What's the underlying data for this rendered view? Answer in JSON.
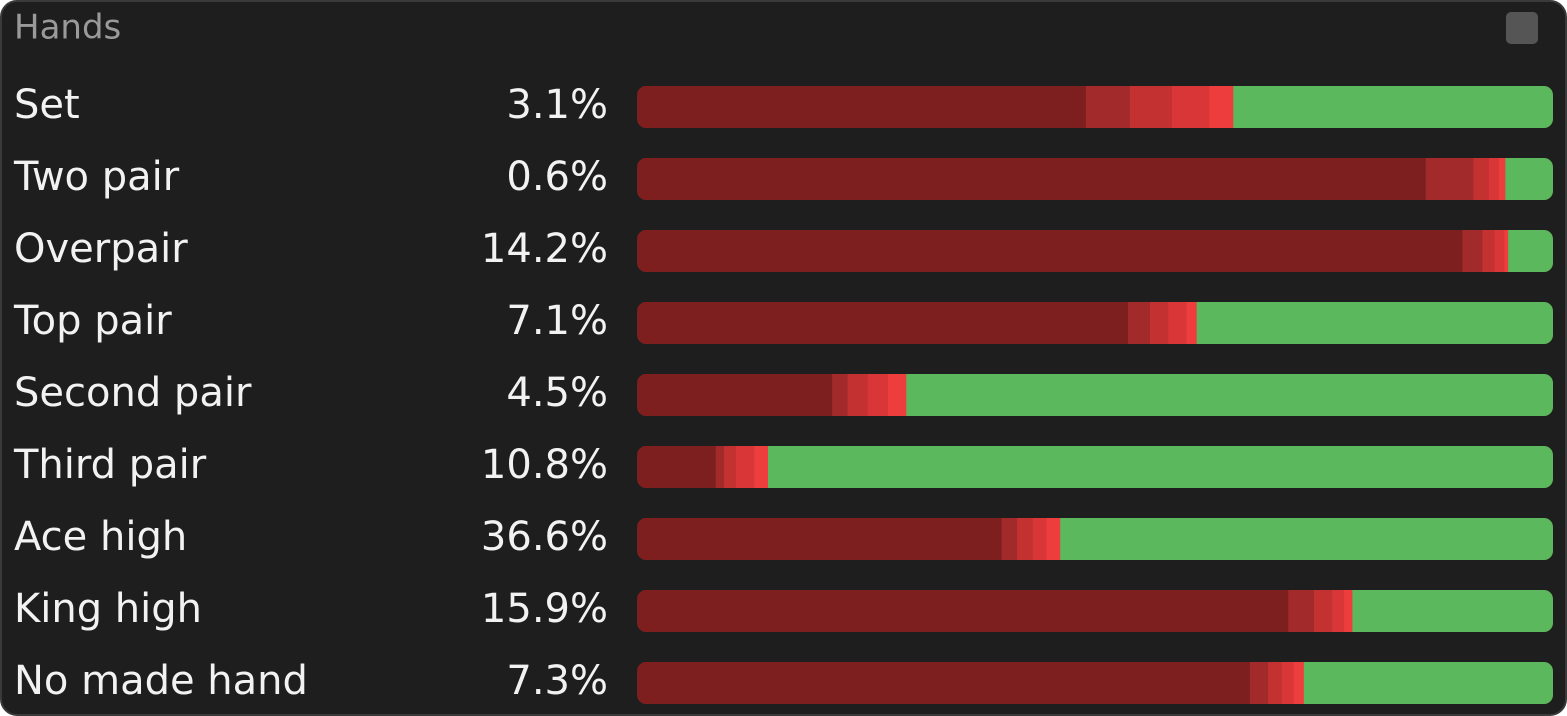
{
  "panel": {
    "title": "Hands",
    "segment_colors": [
      "#7d1f1f",
      "#a22a2a",
      "#c43131",
      "#d93737",
      "#ee3d3d",
      "#5cb85c"
    ],
    "rows": [
      {
        "label": "Set",
        "percent": "3.1%",
        "segments": [
          49.0,
          4.8,
          4.6,
          4.1,
          2.6,
          34.9
        ]
      },
      {
        "label": "Two pair",
        "percent": "0.6%",
        "segments": [
          86.1,
          5.2,
          1.7,
          1.1,
          0.7,
          5.2
        ]
      },
      {
        "label": "Overpair",
        "percent": "14.2%",
        "segments": [
          90.1,
          2.2,
          1.3,
          1.1,
          0.4,
          4.9
        ]
      },
      {
        "label": "Top pair",
        "percent": "7.1%",
        "segments": [
          53.6,
          2.4,
          2.0,
          2.0,
          1.1,
          38.9
        ]
      },
      {
        "label": "Second pair",
        "percent": "4.5%",
        "segments": [
          21.3,
          1.7,
          2.2,
          2.2,
          2.0,
          70.6
        ]
      },
      {
        "label": "Third pair",
        "percent": "10.8%",
        "segments": [
          8.6,
          0.9,
          1.3,
          2.0,
          1.5,
          85.7
        ]
      },
      {
        "label": "Ace high",
        "percent": "36.6%",
        "segments": [
          39.8,
          1.7,
          1.7,
          1.5,
          1.5,
          53.8
        ]
      },
      {
        "label": "King high",
        "percent": "15.9%",
        "segments": [
          71.1,
          2.8,
          2.0,
          1.3,
          0.9,
          21.9
        ]
      },
      {
        "label": "No made hand",
        "percent": "7.3%",
        "segments": [
          66.9,
          2.0,
          1.5,
          1.3,
          1.1,
          27.2
        ]
      }
    ]
  }
}
